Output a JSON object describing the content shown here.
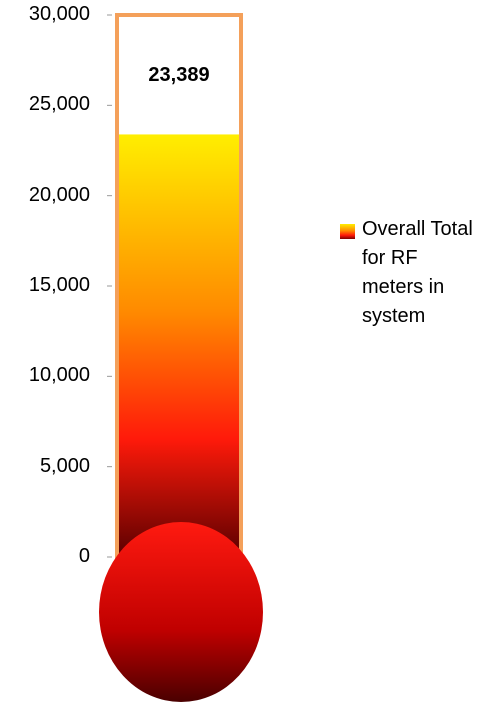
{
  "chart_data": {
    "type": "bar",
    "categories": [
      ""
    ],
    "series": [
      {
        "name": "Overall Total for RF meters in system",
        "values": [
          23389
        ]
      }
    ],
    "ylim": [
      0,
      30000
    ],
    "y_ticks": [
      "30,000",
      "25,000",
      "20,000",
      "15,000",
      "10,000",
      "5,000",
      "0"
    ],
    "y_tick_values": [
      30000,
      25000,
      20000,
      15000,
      10000,
      5000,
      0
    ],
    "data_label": "23,389",
    "legend": {
      "entries": [
        "Overall Total for RF meters in system"
      ],
      "placement": "right"
    },
    "grid": false,
    "title": "",
    "xlabel": "",
    "ylabel": "",
    "colors": {
      "fill_top": "#ffee00",
      "fill_mid": "#ff8a00",
      "fill_red": "#ff1a0a",
      "fill_bottom": "#5a0000",
      "outline": "#f4a05a",
      "bulb_light": "#ff1a10",
      "bulb_dark": "#4a0000"
    }
  }
}
